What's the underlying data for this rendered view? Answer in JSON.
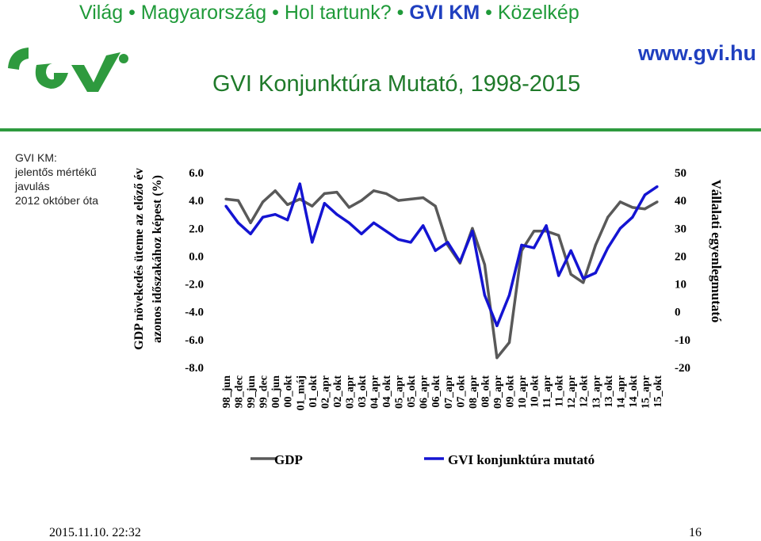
{
  "header": {
    "nav": [
      {
        "label": "Világ",
        "current": false
      },
      {
        "label": "Magyarország",
        "current": false
      },
      {
        "label": "Hol tartunk?",
        "current": false
      },
      {
        "label": "GVI KM",
        "current": true
      },
      {
        "label": "Közelkép",
        "current": false
      }
    ],
    "separator": "•",
    "url": "www.gvi.hu",
    "logo_icon": "gvi-logo",
    "title": "GVI Konjunktúra Mutató, 1998-2015"
  },
  "sidenote": {
    "lines": [
      "GVI KM:",
      "jelentős mértékű",
      "javulás",
      "2012 október óta"
    ]
  },
  "colors": {
    "nav": "#1f9a39",
    "accent_blue": "#1f3fbf",
    "rule": "#2e9a3e",
    "gdp": "#595959",
    "gvi": "#1414d2"
  },
  "chart_data": {
    "type": "line",
    "ylabel": "GDP növekedés üteme az előző év azonos időszakához képest (%)",
    "y2label": "Vállalati egyenlegmutató",
    "ylim": [
      -8,
      6
    ],
    "y2lim": [
      -20,
      50
    ],
    "yticks": [
      "6.0",
      "4.0",
      "2.0",
      "0.0",
      "-2.0",
      "-4.0",
      "-6.0",
      "-8.0"
    ],
    "y2ticks": [
      "50",
      "40",
      "30",
      "20",
      "10",
      "0",
      "-10",
      "-20"
    ],
    "categories": [
      "98_jun",
      "98_dec",
      "99_jun",
      "99_dec",
      "00_jun",
      "00_okt",
      "01_máj",
      "01_okt",
      "02_apr",
      "02_okt",
      "03_apr",
      "03_okt",
      "04_apr",
      "04_okt",
      "05_apr",
      "05_okt",
      "06_apr",
      "06_okt",
      "07_apr",
      "07_okt",
      "08_apr",
      "08_okt",
      "09_apr",
      "09_okt",
      "10_apr",
      "10_okt",
      "11_apr",
      "11_okt",
      "12_apr",
      "12_okt",
      "13_apr",
      "13_okt",
      "14_apr",
      "14_okt",
      "15_apr",
      "15_okt"
    ],
    "series": [
      {
        "name": "GDP",
        "axis": "left",
        "values": [
          4.1,
          4.0,
          2.4,
          3.9,
          4.7,
          3.7,
          4.1,
          3.6,
          4.5,
          4.6,
          3.5,
          4.0,
          4.7,
          4.5,
          4.0,
          4.1,
          4.2,
          3.6,
          0.8,
          -0.5,
          2.0,
          -0.6,
          -7.3,
          -6.2,
          0.4,
          1.8,
          1.8,
          1.5,
          -1.3,
          -1.9,
          0.8,
          2.8,
          3.9,
          3.5,
          3.4,
          3.9
        ]
      },
      {
        "name": "GVI konjunktúra mutató",
        "axis": "right",
        "values": [
          38,
          32,
          28,
          34,
          35,
          33,
          46,
          25,
          39,
          35,
          32,
          28,
          32,
          29,
          26,
          25,
          31,
          22,
          25,
          18,
          29,
          6,
          -5,
          6,
          24,
          23,
          31,
          13,
          22,
          12,
          14,
          23,
          30,
          34,
          42,
          45
        ]
      }
    ]
  },
  "footer": {
    "date": "2015.11.10. 22:32",
    "page": "16"
  }
}
